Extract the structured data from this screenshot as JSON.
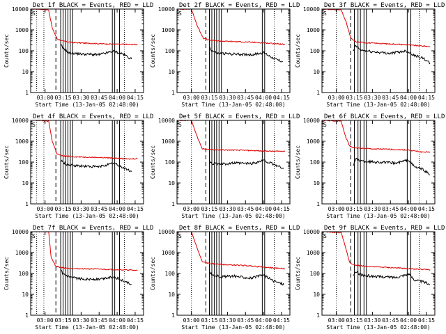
{
  "figure": {
    "ylabel": "Counts/sec",
    "xlabel": "Start Time (13-Jan-05 02:48:00)",
    "x_tick_labels": [
      "03:00",
      "03:15",
      "03:30",
      "03:45",
      "04:00",
      "04:15"
    ],
    "y_tick_labels": [
      "1",
      "10",
      "100",
      "1000",
      "10000"
    ],
    "colors": {
      "events": "#000000",
      "lld": "#e00000"
    }
  },
  "chart_data": [
    {
      "title": "Det 1f BLACK = Events, RED = LLD",
      "corner_label": "S",
      "type": "line",
      "xscale": "time",
      "yscale": "log",
      "ylim": [
        1,
        10000
      ],
      "xlim": [
        "02:48",
        "04:22"
      ],
      "dotted_lines": [
        "02:53",
        "02:59",
        "04:06"
      ],
      "dashed_lines": [
        "03:09"
      ],
      "solid_lines": [
        "03:13",
        "03:15",
        "03:17",
        "03:19",
        "03:21",
        "03:23",
        "03:56",
        "03:58",
        "04:02"
      ],
      "lld": [
        [
          "02:48",
          10000
        ],
        [
          "02:55",
          10000
        ],
        [
          "03:03",
          9000
        ],
        [
          "03:06",
          1200
        ],
        [
          "03:10",
          380
        ],
        [
          "03:14",
          300
        ],
        [
          "03:22",
          250
        ],
        [
          "03:35",
          230
        ],
        [
          "03:50",
          215
        ],
        [
          "04:05",
          205
        ],
        [
          "04:17",
          200
        ]
      ],
      "events": [
        [
          "03:13",
          200
        ],
        [
          "03:15",
          130
        ],
        [
          "03:20",
          80
        ],
        [
          "03:30",
          70
        ],
        [
          "03:45",
          65
        ],
        [
          "03:57",
          95
        ],
        [
          "04:05",
          70
        ],
        [
          "04:12",
          40
        ]
      ]
    },
    {
      "title": "Det 2f BLACK = Events, RED = LLD",
      "corner_label": "S",
      "type": "line",
      "xscale": "time",
      "yscale": "log",
      "ylim": [
        1,
        10000
      ],
      "xlim": [
        "02:48",
        "04:22"
      ],
      "dotted_lines": [
        "03:00",
        "04:09"
      ],
      "dashed_lines": [
        "03:12"
      ],
      "solid_lines": [
        "03:15",
        "03:17",
        "03:19",
        "03:21",
        "03:23",
        "03:25",
        "03:59",
        "04:01"
      ],
      "lld": [
        [
          "02:48",
          10000
        ],
        [
          "03:00",
          10000
        ],
        [
          "03:05",
          1500
        ],
        [
          "03:10",
          400
        ],
        [
          "03:15",
          320
        ],
        [
          "03:25",
          290
        ],
        [
          "03:40",
          270
        ],
        [
          "03:55",
          250
        ],
        [
          "04:10",
          220
        ],
        [
          "04:18",
          200
        ]
      ],
      "events": [
        [
          "03:15",
          150
        ],
        [
          "03:17",
          100
        ],
        [
          "03:22",
          75
        ],
        [
          "03:35",
          70
        ],
        [
          "03:50",
          65
        ],
        [
          "04:00",
          80
        ],
        [
          "04:10",
          40
        ],
        [
          "04:16",
          30
        ]
      ]
    },
    {
      "title": "Det 3f BLACK = Events, RED = LLD",
      "corner_label": "S",
      "type": "line",
      "xscale": "time",
      "yscale": "log",
      "ylim": [
        1,
        10000
      ],
      "xlim": [
        "02:48",
        "04:22"
      ],
      "dotted_lines": [
        "03:00",
        "04:09"
      ],
      "dashed_lines": [
        "03:12"
      ],
      "solid_lines": [
        "03:15",
        "03:18",
        "03:20",
        "03:23",
        "03:25",
        "03:59",
        "04:02"
      ],
      "lld": [
        [
          "02:48",
          10000
        ],
        [
          "03:04",
          9000
        ],
        [
          "03:08",
          2500
        ],
        [
          "03:12",
          400
        ],
        [
          "03:16",
          270
        ],
        [
          "03:25",
          240
        ],
        [
          "03:40",
          220
        ],
        [
          "03:55",
          200
        ],
        [
          "04:05",
          180
        ],
        [
          "04:18",
          160
        ]
      ],
      "events": [
        [
          "03:14",
          90
        ],
        [
          "03:16",
          180
        ],
        [
          "03:20",
          110
        ],
        [
          "03:30",
          90
        ],
        [
          "03:45",
          75
        ],
        [
          "03:58",
          100
        ],
        [
          "04:05",
          60
        ],
        [
          "04:12",
          45
        ],
        [
          "04:18",
          25
        ]
      ]
    },
    {
      "title": "Det 4f BLACK = Events, RED = LLD",
      "corner_label": "S",
      "type": "line",
      "xscale": "time",
      "yscale": "log",
      "ylim": [
        1,
        10000
      ],
      "xlim": [
        "02:48",
        "04:22"
      ],
      "dotted_lines": [
        "02:53",
        "02:59",
        "04:06"
      ],
      "dashed_lines": [
        "03:09"
      ],
      "solid_lines": [
        "03:13",
        "03:15",
        "03:17",
        "03:19",
        "03:21",
        "03:23",
        "03:56",
        "03:58",
        "04:02"
      ],
      "lld": [
        [
          "02:48",
          10000
        ],
        [
          "02:55",
          10000
        ],
        [
          "03:03",
          9000
        ],
        [
          "03:06",
          1000
        ],
        [
          "03:10",
          250
        ],
        [
          "03:14",
          200
        ],
        [
          "03:25",
          180
        ],
        [
          "03:40",
          170
        ],
        [
          "03:55",
          160
        ],
        [
          "04:10",
          140
        ],
        [
          "04:17",
          150
        ]
      ],
      "events": [
        [
          "03:13",
          120
        ],
        [
          "03:15",
          95
        ],
        [
          "03:20",
          70
        ],
        [
          "03:30",
          65
        ],
        [
          "03:45",
          60
        ],
        [
          "03:57",
          90
        ],
        [
          "04:05",
          55
        ],
        [
          "04:12",
          35
        ]
      ]
    },
    {
      "title": "Det 5f BLACK = Events, RED = LLD",
      "corner_label": "S",
      "type": "line",
      "xscale": "time",
      "yscale": "log",
      "ylim": [
        1,
        10000
      ],
      "xlim": [
        "02:48",
        "04:22"
      ],
      "dotted_lines": [
        "03:00",
        "04:09"
      ],
      "dashed_lines": [
        "03:12"
      ],
      "solid_lines": [
        "03:15",
        "03:17",
        "03:19",
        "03:21",
        "03:23",
        "03:25",
        "03:59",
        "04:01"
      ],
      "lld": [
        [
          "02:48",
          10000
        ],
        [
          "03:00",
          10000
        ],
        [
          "03:05",
          1500
        ],
        [
          "03:09",
          450
        ],
        [
          "03:15",
          400
        ],
        [
          "03:30",
          380
        ],
        [
          "03:45",
          370
        ],
        [
          "04:00",
          340
        ],
        [
          "04:10",
          330
        ],
        [
          "04:18",
          340
        ]
      ],
      "events": [
        [
          "03:15",
          110
        ],
        [
          "03:18",
          85
        ],
        [
          "03:25",
          80
        ],
        [
          "03:35",
          90
        ],
        [
          "03:50",
          85
        ],
        [
          "04:00",
          120
        ],
        [
          "04:08",
          80
        ],
        [
          "04:17",
          50
        ]
      ]
    },
    {
      "title": "Det 6f BLACK = Events, RED = LLD",
      "corner_label": "S",
      "type": "line",
      "xscale": "time",
      "yscale": "log",
      "ylim": [
        1,
        10000
      ],
      "xlim": [
        "02:48",
        "04:22"
      ],
      "dotted_lines": [
        "03:00",
        "04:09"
      ],
      "dashed_lines": [
        "03:12"
      ],
      "solid_lines": [
        "03:15",
        "03:18",
        "03:20",
        "03:23",
        "03:25",
        "03:59",
        "04:02"
      ],
      "lld": [
        [
          "02:48",
          10000
        ],
        [
          "03:04",
          9000
        ],
        [
          "03:08",
          1500
        ],
        [
          "03:11",
          600
        ],
        [
          "03:15",
          480
        ],
        [
          "03:30",
          430
        ],
        [
          "03:45",
          410
        ],
        [
          "04:00",
          380
        ],
        [
          "04:10",
          310
        ],
        [
          "04:18",
          300
        ]
      ],
      "events": [
        [
          "03:14",
          70
        ],
        [
          "03:16",
          140
        ],
        [
          "03:22",
          110
        ],
        [
          "03:35",
          100
        ],
        [
          "03:50",
          90
        ],
        [
          "04:00",
          130
        ],
        [
          "04:05",
          60
        ],
        [
          "04:12",
          45
        ],
        [
          "04:18",
          25
        ]
      ]
    },
    {
      "title": "Det 7f BLACK = Events, RED = LLD",
      "corner_label": "S",
      "type": "line",
      "xscale": "time",
      "yscale": "log",
      "ylim": [
        1,
        10000
      ],
      "xlim": [
        "02:48",
        "04:22"
      ],
      "dotted_lines": [
        "02:53",
        "02:59",
        "04:06"
      ],
      "dashed_lines": [
        "03:09"
      ],
      "solid_lines": [
        "03:13",
        "03:15",
        "03:17",
        "03:19",
        "03:21",
        "03:23",
        "03:56",
        "03:58",
        "04:02"
      ],
      "lld": [
        [
          "02:48",
          10000
        ],
        [
          "03:03",
          10000
        ],
        [
          "03:05",
          600
        ],
        [
          "03:09",
          220
        ],
        [
          "03:14",
          190
        ],
        [
          "03:25",
          170
        ],
        [
          "03:40",
          165
        ],
        [
          "03:55",
          155
        ],
        [
          "04:10",
          145
        ],
        [
          "04:17",
          140
        ]
      ],
      "events": [
        [
          "03:13",
          140
        ],
        [
          "03:15",
          95
        ],
        [
          "03:20",
          65
        ],
        [
          "03:30",
          55
        ],
        [
          "03:45",
          52
        ],
        [
          "03:57",
          70
        ],
        [
          "04:05",
          45
        ],
        [
          "04:12",
          30
        ]
      ]
    },
    {
      "title": "Det 8f BLACK = Events, RED = LLD",
      "corner_label": "S",
      "type": "line",
      "xscale": "time",
      "yscale": "log",
      "ylim": [
        1,
        10000
      ],
      "xlim": [
        "02:48",
        "04:22"
      ],
      "dotted_lines": [
        "03:00",
        "04:09"
      ],
      "dashed_lines": [
        "03:12"
      ],
      "solid_lines": [
        "03:15",
        "03:17",
        "03:19",
        "03:21",
        "03:23",
        "03:25",
        "03:59",
        "04:01"
      ],
      "lld": [
        [
          "02:48",
          10000
        ],
        [
          "03:00",
          10000
        ],
        [
          "03:05",
          1500
        ],
        [
          "03:09",
          360
        ],
        [
          "03:15",
          300
        ],
        [
          "03:30",
          260
        ],
        [
          "03:45",
          240
        ],
        [
          "04:00",
          200
        ],
        [
          "04:10",
          180
        ],
        [
          "04:18",
          170
        ]
      ],
      "events": [
        [
          "03:15",
          110
        ],
        [
          "03:18",
          80
        ],
        [
          "03:25",
          70
        ],
        [
          "03:35",
          75
        ],
        [
          "03:50",
          60
        ],
        [
          "04:00",
          85
        ],
        [
          "04:08",
          45
        ],
        [
          "04:17",
          30
        ]
      ]
    },
    {
      "title": "Det 9f BLACK = Events, RED = LLD",
      "corner_label": "S",
      "type": "line",
      "xscale": "time",
      "yscale": "log",
      "ylim": [
        1,
        10000
      ],
      "xlim": [
        "02:48",
        "04:22"
      ],
      "dotted_lines": [
        "03:00",
        "04:09"
      ],
      "dashed_lines": [
        "03:12"
      ],
      "solid_lines": [
        "03:15",
        "03:18",
        "03:20",
        "03:23",
        "03:25",
        "03:59",
        "04:02"
      ],
      "lld": [
        [
          "02:48",
          10000
        ],
        [
          "03:04",
          9000
        ],
        [
          "03:08",
          1500
        ],
        [
          "03:11",
          350
        ],
        [
          "03:15",
          250
        ],
        [
          "03:30",
          210
        ],
        [
          "03:45",
          190
        ],
        [
          "04:00",
          170
        ],
        [
          "04:10",
          160
        ],
        [
          "04:18",
          150
        ]
      ],
      "events": [
        [
          "03:14",
          70
        ],
        [
          "03:16",
          120
        ],
        [
          "03:22",
          80
        ],
        [
          "03:35",
          70
        ],
        [
          "03:50",
          65
        ],
        [
          "04:00",
          95
        ],
        [
          "04:05",
          50
        ],
        [
          "04:12",
          40
        ],
        [
          "04:18",
          30
        ]
      ]
    }
  ]
}
